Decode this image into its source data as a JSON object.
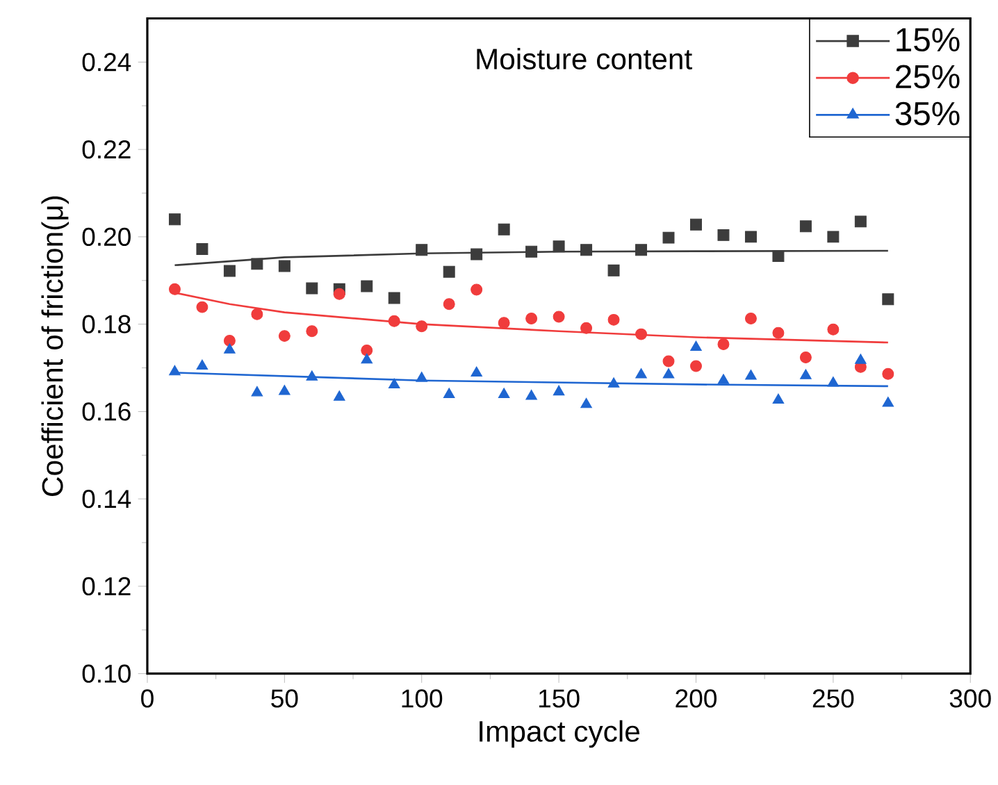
{
  "chart_data": {
    "type": "scatter",
    "xlabel": "Impact cycle",
    "ylabel": "Coefficient of friction(μ)",
    "legend_title": "Moisture content",
    "x": [
      10,
      20,
      30,
      40,
      50,
      60,
      70,
      80,
      90,
      100,
      110,
      120,
      130,
      140,
      150,
      160,
      170,
      180,
      190,
      200,
      210,
      220,
      230,
      240,
      250,
      260,
      270
    ],
    "series": [
      {
        "name": "15%",
        "color": "#3c3c3c",
        "marker": "square",
        "values": [
          0.204,
          0.1972,
          0.1922,
          0.1938,
          0.1933,
          0.1882,
          0.188,
          0.1887,
          0.186,
          0.197,
          0.192,
          0.196,
          0.2017,
          0.1966,
          0.1978,
          0.197,
          0.1923,
          0.197,
          0.1998,
          0.2028,
          0.2004,
          0.2,
          0.1956,
          0.2024,
          0.2,
          0.2035,
          0.1857
        ]
      },
      {
        "name": "25%",
        "color": "#f03c3c",
        "marker": "circle",
        "values": [
          0.188,
          0.1839,
          0.1762,
          0.1823,
          0.1773,
          0.1784,
          0.1869,
          0.174,
          0.1807,
          0.1795,
          0.1846,
          0.1879,
          0.1803,
          0.1813,
          0.1817,
          0.1791,
          0.181,
          0.1777,
          0.1715,
          0.1704,
          0.1754,
          0.1813,
          0.178,
          0.1724,
          0.1788,
          0.1702,
          0.1686
        ]
      },
      {
        "name": "35%",
        "color": "#1f66d1",
        "marker": "triangle",
        "values": [
          0.1691,
          0.1704,
          0.1741,
          0.1643,
          0.1646,
          0.1679,
          0.1633,
          0.1718,
          0.1661,
          0.1676,
          0.1639,
          0.1688,
          0.1639,
          0.1635,
          0.1645,
          0.1616,
          0.1663,
          0.1684,
          0.1684,
          0.1747,
          0.1671,
          0.1681,
          0.1626,
          0.1682,
          0.1665,
          0.1717,
          0.1619
        ]
      },
      {
        "type": "line",
        "color": "#3c3c3c",
        "marker": "none",
        "x": [
          10,
          50,
          100,
          150,
          200,
          270
        ],
        "values": [
          0.1935,
          0.1953,
          0.1962,
          0.1966,
          0.1967,
          0.1968
        ]
      },
      {
        "type": "line",
        "color": "#f03c3c",
        "marker": "none",
        "x": [
          10,
          30,
          50,
          100,
          150,
          200,
          270
        ],
        "values": [
          0.1872,
          0.1846,
          0.1827,
          0.18,
          0.1784,
          0.177,
          0.1758
        ]
      },
      {
        "type": "line",
        "color": "#1f66d1",
        "marker": "none",
        "x": [
          10,
          100,
          200,
          270
        ],
        "values": [
          0.1689,
          0.1671,
          0.1662,
          0.1658
        ]
      }
    ],
    "xlim": [
      0,
      300
    ],
    "xticks": [
      0,
      50,
      100,
      150,
      200,
      250,
      300
    ],
    "ylim": [
      0.1,
      0.25
    ],
    "yticks": [
      {
        "value": 0.1,
        "label": "0.10"
      },
      {
        "value": 0.12,
        "label": "0.12"
      },
      {
        "value": 0.14,
        "label": "0.14"
      },
      {
        "value": 0.16,
        "label": "0.16"
      },
      {
        "value": 0.18,
        "label": "0.18"
      },
      {
        "value": 0.2,
        "label": "0.20"
      },
      {
        "value": 0.22,
        "label": "0.22"
      },
      {
        "value": 0.24,
        "label": "0.24"
      }
    ],
    "grid": false,
    "legend": "top right"
  }
}
